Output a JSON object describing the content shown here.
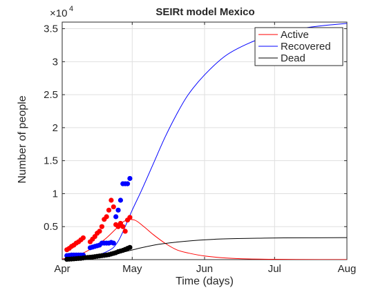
{
  "chart_data": {
    "type": "line",
    "title": "SEIRt model Mexico",
    "xlabel": "Time (days)",
    "ylabel": "Number of people",
    "exponent_label": "×10",
    "exponent_power": "4",
    "xlim": [
      "2020-04-01",
      "2020-08-01"
    ],
    "ylim": [
      0,
      36000
    ],
    "x_ticks": [
      {
        "date": "2020-04-01",
        "label": "Apr"
      },
      {
        "date": "2020-05-01",
        "label": "May"
      },
      {
        "date": "2020-06-01",
        "label": "Jun"
      },
      {
        "date": "2020-07-01",
        "label": "Jul"
      },
      {
        "date": "2020-08-01",
        "label": "Aug"
      }
    ],
    "y_ticks": [
      {
        "value": 5000,
        "label": "0.5"
      },
      {
        "value": 10000,
        "label": "1"
      },
      {
        "value": 15000,
        "label": "1.5"
      },
      {
        "value": 20000,
        "label": "2"
      },
      {
        "value": 25000,
        "label": "2.5"
      },
      {
        "value": 30000,
        "label": "3"
      },
      {
        "value": 35000,
        "label": "3.5"
      }
    ],
    "grid": true,
    "legend_position": "top-right",
    "series": [
      {
        "name": "Active",
        "kind": "line",
        "color": "#ff0000",
        "x": [
          "2020-04-01",
          "2020-04-05",
          "2020-04-10",
          "2020-04-15",
          "2020-04-20",
          "2020-04-25",
          "2020-04-28",
          "2020-05-02",
          "2020-05-06",
          "2020-05-10",
          "2020-05-15",
          "2020-05-20",
          "2020-05-25",
          "2020-06-01",
          "2020-06-10",
          "2020-06-20",
          "2020-07-01",
          "2020-07-10",
          "2020-07-20",
          "2020-08-01"
        ],
        "y": [
          100,
          400,
          1000,
          2000,
          3300,
          5000,
          5900,
          6000,
          5000,
          3800,
          2500,
          1500,
          1000,
          550,
          250,
          100,
          50,
          30,
          15,
          8
        ]
      },
      {
        "name": "Recovered",
        "kind": "line",
        "color": "#0000ff",
        "x": [
          "2020-04-01",
          "2020-04-10",
          "2020-04-20",
          "2020-04-25",
          "2020-05-01",
          "2020-05-05",
          "2020-05-10",
          "2020-05-15",
          "2020-05-20",
          "2020-05-25",
          "2020-06-01",
          "2020-06-10",
          "2020-06-20",
          "2020-07-01",
          "2020-07-10",
          "2020-07-20",
          "2020-08-01"
        ],
        "y": [
          0,
          200,
          1200,
          2800,
          7500,
          10500,
          14500,
          18500,
          22000,
          25000,
          28000,
          30900,
          32800,
          34200,
          34900,
          35400,
          35800
        ]
      },
      {
        "name": "Dead",
        "kind": "line",
        "color": "#000000",
        "x": [
          "2020-04-01",
          "2020-04-10",
          "2020-04-20",
          "2020-04-28",
          "2020-05-05",
          "2020-05-12",
          "2020-05-20",
          "2020-05-27",
          "2020-06-05",
          "2020-06-15",
          "2020-06-25",
          "2020-07-05",
          "2020-07-15",
          "2020-07-25",
          "2020-08-01"
        ],
        "y": [
          0,
          200,
          600,
          1200,
          1800,
          2300,
          2650,
          2880,
          3080,
          3190,
          3250,
          3290,
          3310,
          3320,
          3330
        ]
      },
      {
        "kind": "scatter",
        "color": "#ff0000",
        "x": [
          "2020-04-03",
          "2020-04-04",
          "2020-04-05",
          "2020-04-06",
          "2020-04-07",
          "2020-04-08",
          "2020-04-09",
          "2020-04-10",
          "2020-04-13",
          "2020-04-14",
          "2020-04-15",
          "2020-04-16",
          "2020-04-17",
          "2020-04-18",
          "2020-04-19",
          "2020-04-20",
          "2020-04-21",
          "2020-04-22",
          "2020-04-23",
          "2020-04-24",
          "2020-04-25",
          "2020-04-26",
          "2020-04-27",
          "2020-04-28",
          "2020-04-29",
          "2020-04-30"
        ],
        "y": [
          1500,
          1700,
          2000,
          2200,
          2500,
          2700,
          3000,
          3300,
          2700,
          3100,
          3500,
          4000,
          4300,
          5000,
          6100,
          6500,
          7500,
          9000,
          8000,
          5300,
          5000,
          5500,
          5000,
          4300,
          6000,
          6400
        ]
      },
      {
        "kind": "scatter",
        "color": "#0000ff",
        "x": [
          "2020-04-03",
          "2020-04-04",
          "2020-04-05",
          "2020-04-06",
          "2020-04-07",
          "2020-04-08",
          "2020-04-09",
          "2020-04-10",
          "2020-04-13",
          "2020-04-14",
          "2020-04-15",
          "2020-04-16",
          "2020-04-17",
          "2020-04-18",
          "2020-04-19",
          "2020-04-20",
          "2020-04-21",
          "2020-04-22",
          "2020-04-23",
          "2020-04-24",
          "2020-04-25",
          "2020-04-26",
          "2020-04-27",
          "2020-04-28",
          "2020-04-29",
          "2020-04-30"
        ],
        "y": [
          600,
          650,
          700,
          700,
          700,
          700,
          700,
          700,
          1800,
          1900,
          2000,
          2100,
          2200,
          2500,
          2500,
          2500,
          2500,
          2600,
          2500,
          6500,
          7500,
          9000,
          11500,
          11500,
          11500,
          12300
        ]
      },
      {
        "kind": "scatter",
        "color": "#000000",
        "x": [
          "2020-04-03",
          "2020-04-04",
          "2020-04-05",
          "2020-04-06",
          "2020-04-07",
          "2020-04-08",
          "2020-04-09",
          "2020-04-10",
          "2020-04-11",
          "2020-04-12",
          "2020-04-13",
          "2020-04-14",
          "2020-04-15",
          "2020-04-16",
          "2020-04-17",
          "2020-04-18",
          "2020-04-19",
          "2020-04-20",
          "2020-04-21",
          "2020-04-22",
          "2020-04-23",
          "2020-04-24",
          "2020-04-25",
          "2020-04-26",
          "2020-04-27",
          "2020-04-28",
          "2020-04-29",
          "2020-04-30"
        ],
        "y": [
          50,
          70,
          90,
          120,
          150,
          180,
          200,
          250,
          300,
          330,
          350,
          400,
          450,
          500,
          550,
          600,
          650,
          700,
          750,
          850,
          950,
          1050,
          1200,
          1300,
          1400,
          1550,
          1700,
          1850
        ]
      }
    ]
  }
}
